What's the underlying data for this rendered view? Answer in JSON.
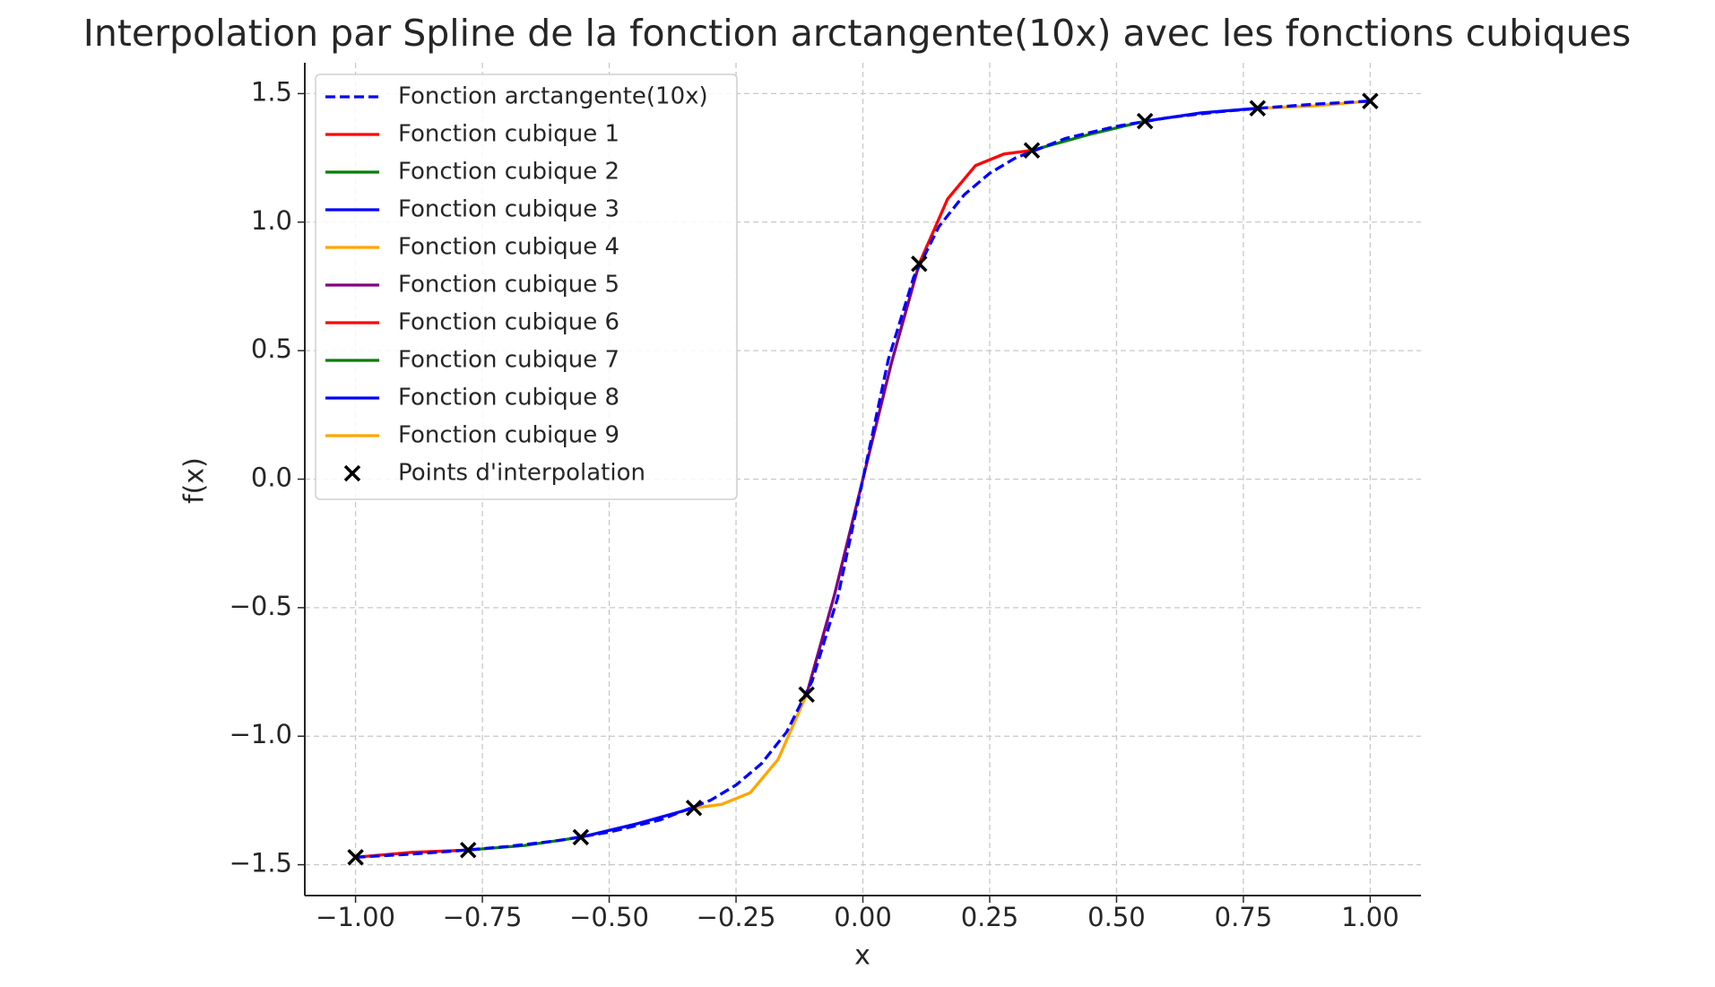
{
  "chart_data": {
    "type": "line",
    "title": "Interpolation par Spline de la fonction arctangente(10x) avec les fonctions cubiques",
    "x_label": "x",
    "y_label": "f(x)",
    "xlim": [
      -1.1,
      1.1
    ],
    "ylim": [
      -1.62,
      1.62
    ],
    "xticks": [
      {
        "value": -1,
        "label": "−1.00"
      },
      {
        "value": -0.75,
        "label": "−0.75"
      },
      {
        "value": -0.5,
        "label": "−0.50"
      },
      {
        "value": -0.25,
        "label": "−0.25"
      },
      {
        "value": 0,
        "label": "0.00"
      },
      0.25,
      {
        "value": 0.5,
        "label": "0.50"
      },
      0.75,
      {
        "value": 1,
        "label": "1.00"
      }
    ],
    "yticks": [
      {
        "value": -1.5,
        "label": "−1.5"
      },
      {
        "value": -1,
        "label": "−1.0"
      },
      {
        "value": -0.5,
        "label": "−0.5"
      },
      {
        "value": 0,
        "label": "0.0"
      },
      0.5,
      {
        "value": 1,
        "label": "1.0"
      },
      1.5
    ],
    "grid": true,
    "legend": "upper left",
    "series": [
      {
        "name": "Fonction arctangente(10x)",
        "color": "#0000ff",
        "dash": true,
        "x": [
          -1,
          -0.9,
          -0.8,
          -0.7,
          -0.6,
          -0.5,
          -0.4,
          -0.3,
          -0.25,
          -0.2,
          -0.15,
          -0.1,
          -0.05,
          0,
          0.05,
          0.1,
          0.15,
          0.2,
          0.25,
          0.3,
          0.4,
          0.5,
          0.6,
          0.7,
          0.8,
          0.9,
          1
        ],
        "values": [
          -1.471,
          -1.46,
          -1.446,
          -1.429,
          -1.406,
          -1.373,
          -1.326,
          -1.249,
          -1.19,
          -1.107,
          -0.983,
          -0.785,
          -0.464,
          0,
          0.464,
          0.785,
          0.983,
          1.107,
          1.19,
          1.249,
          1.326,
          1.373,
          1.406,
          1.429,
          1.446,
          1.46,
          1.471
        ]
      },
      {
        "name": "Fonction cubique 1",
        "color": "#ff0000",
        "x": [
          -1,
          -0.889,
          -0.778
        ],
        "values": [
          -1.471,
          -1.452,
          -1.443
        ]
      },
      {
        "name": "Fonction cubique 2",
        "color": "#008000",
        "x": [
          -0.778,
          -0.667,
          -0.556
        ],
        "values": [
          -1.443,
          -1.425,
          -1.393
        ]
      },
      {
        "name": "Fonction cubique 3",
        "color": "#0000ff",
        "x": [
          -0.556,
          -0.444,
          -0.333
        ],
        "values": [
          -1.393,
          -1.34,
          -1.279
        ]
      },
      {
        "name": "Fonction cubique 4",
        "color": "#ffa500",
        "x": [
          -0.333,
          -0.278,
          -0.222,
          -0.167,
          -0.111
        ],
        "values": [
          -1.279,
          -1.265,
          -1.22,
          -1.09,
          -0.838
        ]
      },
      {
        "name": "Fonction cubique 5",
        "color": "#800080",
        "x": [
          -0.111,
          -0.056,
          0,
          0.056,
          0.111
        ],
        "values": [
          -0.838,
          -0.45,
          0,
          0.45,
          0.838
        ]
      },
      {
        "name": "Fonction cubique 6",
        "color": "#ff0000",
        "x": [
          0.111,
          0.167,
          0.222,
          0.278,
          0.333
        ],
        "values": [
          0.838,
          1.09,
          1.22,
          1.265,
          1.279
        ]
      },
      {
        "name": "Fonction cubique 7",
        "color": "#008000",
        "x": [
          0.333,
          0.444,
          0.556
        ],
        "values": [
          1.279,
          1.34,
          1.393
        ]
      },
      {
        "name": "Fonction cubique 8",
        "color": "#0000ff",
        "x": [
          0.556,
          0.667,
          0.778
        ],
        "values": [
          1.393,
          1.425,
          1.443
        ]
      },
      {
        "name": "Fonction cubique 9",
        "color": "#ffa500",
        "x": [
          0.778,
          0.889,
          1
        ],
        "values": [
          1.443,
          1.452,
          1.471
        ]
      },
      {
        "name": "Points d'interpolation",
        "color": "#000000",
        "marker": "x",
        "x": [
          -1,
          -0.778,
          -0.556,
          -0.333,
          -0.111,
          0.111,
          0.333,
          0.556,
          0.778,
          1
        ],
        "values": [
          -1.471,
          -1.443,
          -1.393,
          -1.279,
          -0.838,
          0.838,
          1.279,
          1.393,
          1.443,
          1.471
        ]
      }
    ]
  }
}
